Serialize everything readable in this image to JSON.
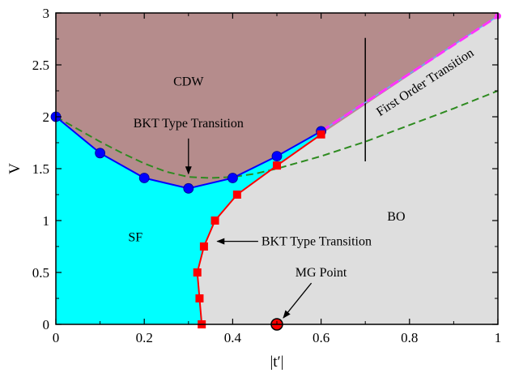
{
  "chart_data": {
    "type": "line",
    "xlabel": "|t′|",
    "ylabel": "V",
    "xlim": [
      0,
      1
    ],
    "ylim": [
      0,
      3
    ],
    "xticks": [
      0,
      0.2,
      0.4,
      0.6,
      0.8,
      1
    ],
    "xtick_labels": [
      "0",
      "0.2",
      "0.4",
      "0.6",
      "0.8",
      "1"
    ],
    "yticks": [
      0,
      0.5,
      1,
      1.5,
      2,
      2.5,
      3
    ],
    "ytick_labels": [
      "0",
      "0.5",
      "1",
      "1.5",
      "2",
      "2.5",
      "3"
    ],
    "grid": false,
    "colors": {
      "cdw": "#b58c8c",
      "sf": "#00ffff",
      "bo": "#dedede",
      "sf_boundary": "#0000ff",
      "bo_boundary": "#ff0000",
      "dashed_green": "#2e8b20",
      "first_order": "#ff33ff"
    },
    "regions": [
      {
        "label": "CDW",
        "x": 0.3,
        "y": 2.3
      },
      {
        "label": "SF",
        "x": 0.18,
        "y": 0.8
      },
      {
        "label": "BO",
        "x": 0.77,
        "y": 1.0
      }
    ],
    "series": [
      {
        "marker": "circle",
        "x": [
          0,
          0.1,
          0.2,
          0.3,
          0.4,
          0.5,
          0.6
        ],
        "y": [
          2.0,
          1.65,
          1.41,
          1.31,
          1.41,
          1.62,
          1.86
        ]
      },
      {
        "marker": "square",
        "x": [
          0.33,
          0.325,
          0.32,
          0.335,
          0.36,
          0.41,
          0.5,
          0.6
        ],
        "y": [
          0.0,
          0.25,
          0.5,
          0.75,
          1.0,
          1.25,
          1.53,
          1.83
        ]
      },
      {
        "style": "dashed",
        "x": [
          0,
          0.05,
          0.1,
          0.15,
          0.2,
          0.25,
          0.3,
          0.35,
          0.4,
          0.45,
          0.5,
          0.6,
          0.7,
          0.8,
          0.9,
          1.0
        ],
        "y": [
          2.0,
          1.88,
          1.76,
          1.65,
          1.55,
          1.47,
          1.42,
          1.41,
          1.42,
          1.45,
          1.5,
          1.62,
          1.76,
          1.92,
          2.08,
          2.25
        ]
      },
      {
        "style": "dashed",
        "x": [
          0.6,
          1.0
        ],
        "y": [
          1.86,
          2.97
        ]
      }
    ],
    "annotations": [
      {
        "text": "BKT Type Transition",
        "x": 0.3,
        "y": 1.9,
        "arrow_to": [
          0.3,
          1.42
        ]
      },
      {
        "text": "BKT Type Transition",
        "x": 0.465,
        "y": 0.8,
        "arrow_to": [
          0.365,
          0.8
        ]
      },
      {
        "text": "First Order Transition",
        "x": 0.84,
        "y": 2.3,
        "rotation": -33
      },
      {
        "text": "MG Point",
        "x": 0.6,
        "y": 0.46,
        "arrow_to": [
          0.5,
          0.0
        ]
      }
    ],
    "vertical_line": {
      "x": 0.7,
      "y": [
        1.57,
        2.76
      ]
    },
    "special_point": {
      "label": "MG Point",
      "x": 0.5,
      "y": 0.0
    }
  }
}
